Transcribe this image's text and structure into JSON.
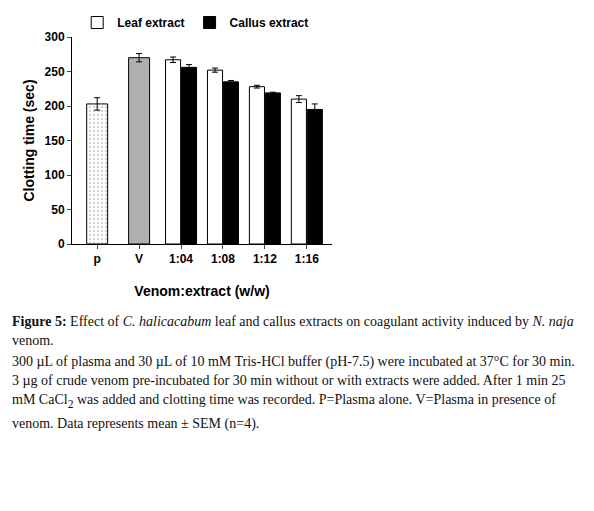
{
  "chart_data": {
    "type": "bar",
    "categories": [
      "p",
      "V",
      "1:04",
      "1:08",
      "1:12",
      "1:16"
    ],
    "x_label": "Venom:extract (w/w)",
    "y_label": "Clotting time (sec)",
    "ylim": [
      0,
      300
    ],
    "yticks": [
      0,
      50,
      100,
      150,
      200,
      250,
      300
    ],
    "grid": false,
    "legend": "top",
    "series": [
      {
        "colors": [
          "#d4d4d4",
          "#b0b0b0"
        ],
        "values": [
          203,
          270,
          null,
          null,
          null,
          null
        ],
        "errors": [
          9,
          6,
          null,
          null,
          null,
          null
        ]
      },
      {
        "name": "Leaf extract",
        "color": "#ffffff",
        "values": [
          null,
          null,
          267,
          252,
          228,
          210
        ],
        "errors": [
          null,
          null,
          4,
          3,
          2,
          5
        ]
      },
      {
        "name": "Callus extract",
        "color": "#000000",
        "values": [
          null,
          null,
          256,
          235,
          219,
          195
        ],
        "errors": [
          null,
          null,
          4,
          2,
          1,
          8
        ]
      }
    ]
  },
  "caption": {
    "paragraphs": [
      [
        {
          "text": "Figure 5:",
          "bold": true
        },
        {
          "text": " Effect of "
        },
        {
          "text": "C. halicacabum",
          "italic": true
        },
        {
          "text": " leaf and callus extracts on coagulant activity induced by "
        },
        {
          "text": "N. naja",
          "italic": true
        },
        {
          "text": " venom."
        }
      ],
      [
        {
          "text": "300 µL of plasma and 30 µL of 10 mM Tris-HCl buffer (pH-7.5) were incubated at 37°C for 30 min. 3 µg of crude venom pre-incubated for 30 min without or with extracts were added. After 1 min 25 mM CaCl"
        },
        {
          "text": "2",
          "sub": true
        },
        {
          "text": " was added and clotting time was recorded. P=Plasma alone. V=Plasma in presence of venom. Data represents mean ± SEM (n=4)."
        }
      ]
    ]
  }
}
